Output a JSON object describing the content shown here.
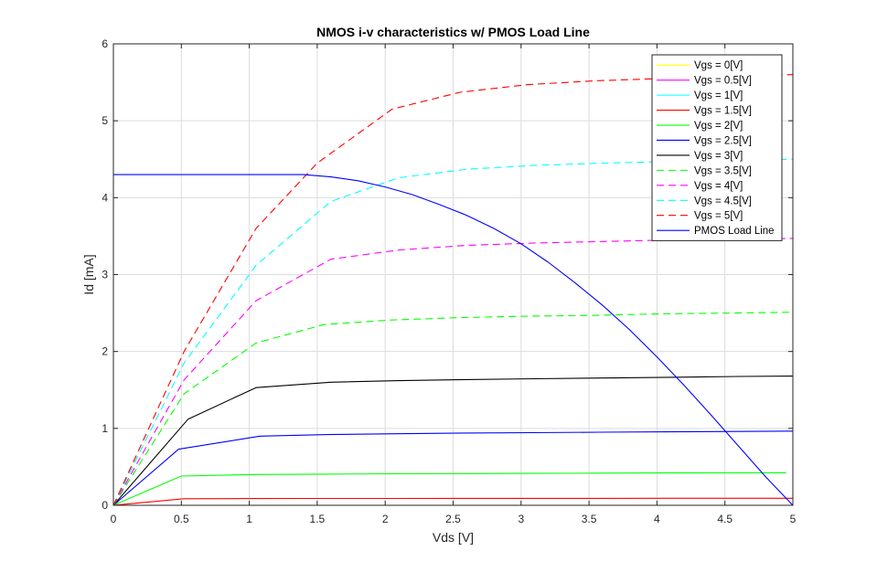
{
  "chart_data": {
    "type": "line",
    "title": "NMOS i-v characteristics w/ PMOS Load Line",
    "xlabel": "Vds [V]",
    "ylabel": "Id [mA]",
    "xlim": [
      0,
      5
    ],
    "ylim": [
      0,
      6
    ],
    "xticks": [
      "0",
      "0.5",
      "1",
      "1.5",
      "2",
      "2.5",
      "3",
      "3.5",
      "4",
      "4.5",
      "5"
    ],
    "yticks": [
      "0",
      "1",
      "2",
      "3",
      "4",
      "5",
      "6"
    ],
    "grid": true,
    "legend_position": "top-right",
    "series": [
      {
        "name": "Vgs = 0[V]",
        "color": "#ffff00",
        "style": "solid",
        "x": [
          0,
          5
        ],
        "y": [
          0,
          0
        ]
      },
      {
        "name": "Vgs = 0.5[V]",
        "color": "#ff00ff",
        "style": "solid",
        "x": [
          0,
          5
        ],
        "y": [
          0,
          0
        ]
      },
      {
        "name": "Vgs = 1[V]",
        "color": "#00ffff",
        "style": "solid",
        "x": [
          0,
          5
        ],
        "y": [
          0,
          0
        ]
      },
      {
        "name": "Vgs = 1.5[V]",
        "color": "#ff0000",
        "style": "solid",
        "x": [
          0,
          0.52,
          1.05,
          1.55,
          2.05,
          2.55,
          3.05,
          3.55,
          4.05,
          4.55,
          5.0
        ],
        "y": [
          0,
          0.085,
          0.088,
          0.089,
          0.089,
          0.09,
          0.09,
          0.09,
          0.091,
          0.091,
          0.092
        ]
      },
      {
        "name": "Vgs = 2[V]",
        "color": "#00ff00",
        "style": "solid",
        "x": [
          0,
          0.5,
          1.05,
          1.55,
          2.05,
          2.55,
          3.05,
          3.55,
          4.05,
          4.55,
          4.95
        ],
        "y": [
          0,
          0.38,
          0.4,
          0.405,
          0.41,
          0.412,
          0.415,
          0.418,
          0.42,
          0.422,
          0.423
        ]
      },
      {
        "name": "Vgs = 2.5[V]",
        "color": "#0000ff",
        "style": "solid",
        "x": [
          0,
          0.48,
          1.08,
          1.58,
          2.08,
          2.58,
          3.08,
          3.58,
          4.08,
          4.58,
          5.0
        ],
        "y": [
          0,
          0.73,
          0.9,
          0.92,
          0.93,
          0.94,
          0.945,
          0.95,
          0.955,
          0.96,
          0.965
        ]
      },
      {
        "name": "Vgs = 3[V]",
        "color": "#000000",
        "style": "solid",
        "x": [
          0,
          0.55,
          1.05,
          1.6,
          2.1,
          2.6,
          3.1,
          3.6,
          4.1,
          4.6,
          5.0
        ],
        "y": [
          0,
          1.12,
          1.53,
          1.6,
          1.62,
          1.635,
          1.645,
          1.655,
          1.665,
          1.675,
          1.68
        ]
      },
      {
        "name": "Vgs = 3.5[V]",
        "color": "#00ff00",
        "style": "dashed",
        "x": [
          0,
          0.52,
          1.05,
          1.55,
          2.05,
          2.55,
          3.05,
          3.55,
          4.05,
          4.55,
          5.0
        ],
        "y": [
          0,
          1.45,
          2.11,
          2.35,
          2.41,
          2.44,
          2.46,
          2.47,
          2.49,
          2.5,
          2.51
        ]
      },
      {
        "name": "Vgs = 4[V]",
        "color": "#ff00ff",
        "style": "dashed",
        "x": [
          0,
          0.52,
          1.05,
          1.6,
          2.1,
          2.6,
          3.1,
          3.6,
          4.1,
          4.6,
          5.0
        ],
        "y": [
          0,
          1.63,
          2.66,
          3.2,
          3.32,
          3.38,
          3.41,
          3.43,
          3.45,
          3.46,
          3.47
        ]
      },
      {
        "name": "Vgs = 4.5[V]",
        "color": "#00ffff",
        "style": "dashed",
        "x": [
          0,
          0.52,
          1.05,
          1.6,
          2.1,
          2.6,
          3.1,
          3.6,
          4.1,
          4.6,
          5.0
        ],
        "y": [
          0,
          1.85,
          3.12,
          3.95,
          4.26,
          4.37,
          4.42,
          4.45,
          4.47,
          4.49,
          4.5
        ]
      },
      {
        "name": "Vgs = 5[V]",
        "color": "#ff0000",
        "style": "dashed",
        "x": [
          0,
          0.52,
          1.05,
          1.5,
          2.05,
          2.55,
          3.05,
          3.55,
          4.05,
          4.55,
          5.0
        ],
        "y": [
          0,
          2.0,
          3.6,
          4.45,
          5.15,
          5.37,
          5.47,
          5.52,
          5.55,
          5.58,
          5.6
        ]
      },
      {
        "name": "PMOS Load Line",
        "color": "#0000ff",
        "style": "solid",
        "x": [
          0,
          0.5,
          1.0,
          1.4,
          1.6,
          1.8,
          2.0,
          2.2,
          2.4,
          2.6,
          2.8,
          3.0,
          3.2,
          3.4,
          3.6,
          3.8,
          4.0,
          4.2,
          4.4,
          4.6,
          4.8,
          5.0
        ],
        "y": [
          4.3,
          4.3,
          4.3,
          4.3,
          4.27,
          4.22,
          4.14,
          4.04,
          3.91,
          3.77,
          3.6,
          3.4,
          3.16,
          2.89,
          2.6,
          2.28,
          1.93,
          1.56,
          1.17,
          0.77,
          0.37,
          0.0
        ]
      }
    ]
  }
}
